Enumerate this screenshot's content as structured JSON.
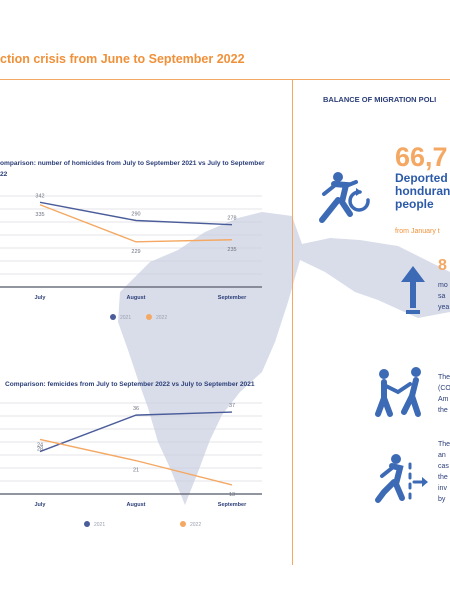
{
  "page": {
    "title": "ction crisis from June to September 2022",
    "right_heading": "BALANCE OF MIGRATION POLI",
    "accent_color": "#f4a863",
    "navy_color": "#2b3e78",
    "blue_color": "#3d6ab5"
  },
  "stats": {
    "deported_number": "66,7",
    "deported_lines": [
      "Deported",
      "honduran",
      "people"
    ],
    "deported_from": "from January t",
    "stat2_number": "8",
    "stat2_lines": [
      "mo",
      "sa",
      "yea"
    ],
    "stat3_lines": [
      "The",
      "(CO",
      "Am",
      "the"
    ],
    "stat4_lines": [
      "The",
      "an",
      "cas",
      "the",
      "inv",
      "by"
    ],
    "icons": [
      "deported-person-icon",
      "arrow-up-icon",
      "helping-people-icon",
      "person-running-icon"
    ]
  },
  "chart_data": [
    {
      "type": "line",
      "title_lines": [
        "omparison: number of homicides from July to September 2021 vs July to September",
        "22"
      ],
      "categories": [
        "July",
        "August",
        "September"
      ],
      "series": [
        {
          "name": "2021",
          "values": [
            342,
            290,
            278
          ],
          "color": "#4a5c99"
        },
        {
          "name": "2022",
          "values": [
            335,
            229,
            235
          ],
          "color": "#f4a863"
        }
      ],
      "ylim": [
        100,
        360
      ],
      "grid": true,
      "legend": "bottom-center"
    },
    {
      "type": "line",
      "title_lines": [
        "Comparison: femicides from July to September 2022 vs July to September 2021"
      ],
      "categories": [
        "July",
        "August",
        "September"
      ],
      "series": [
        {
          "name": "2021",
          "values": [
            24,
            36,
            37
          ],
          "color": "#4a5c99"
        },
        {
          "name": "2022",
          "values": [
            28,
            21,
            13
          ],
          "color": "#f4a863"
        }
      ],
      "ylim": [
        10,
        40
      ],
      "grid": true,
      "legend": "bottom-center"
    }
  ]
}
